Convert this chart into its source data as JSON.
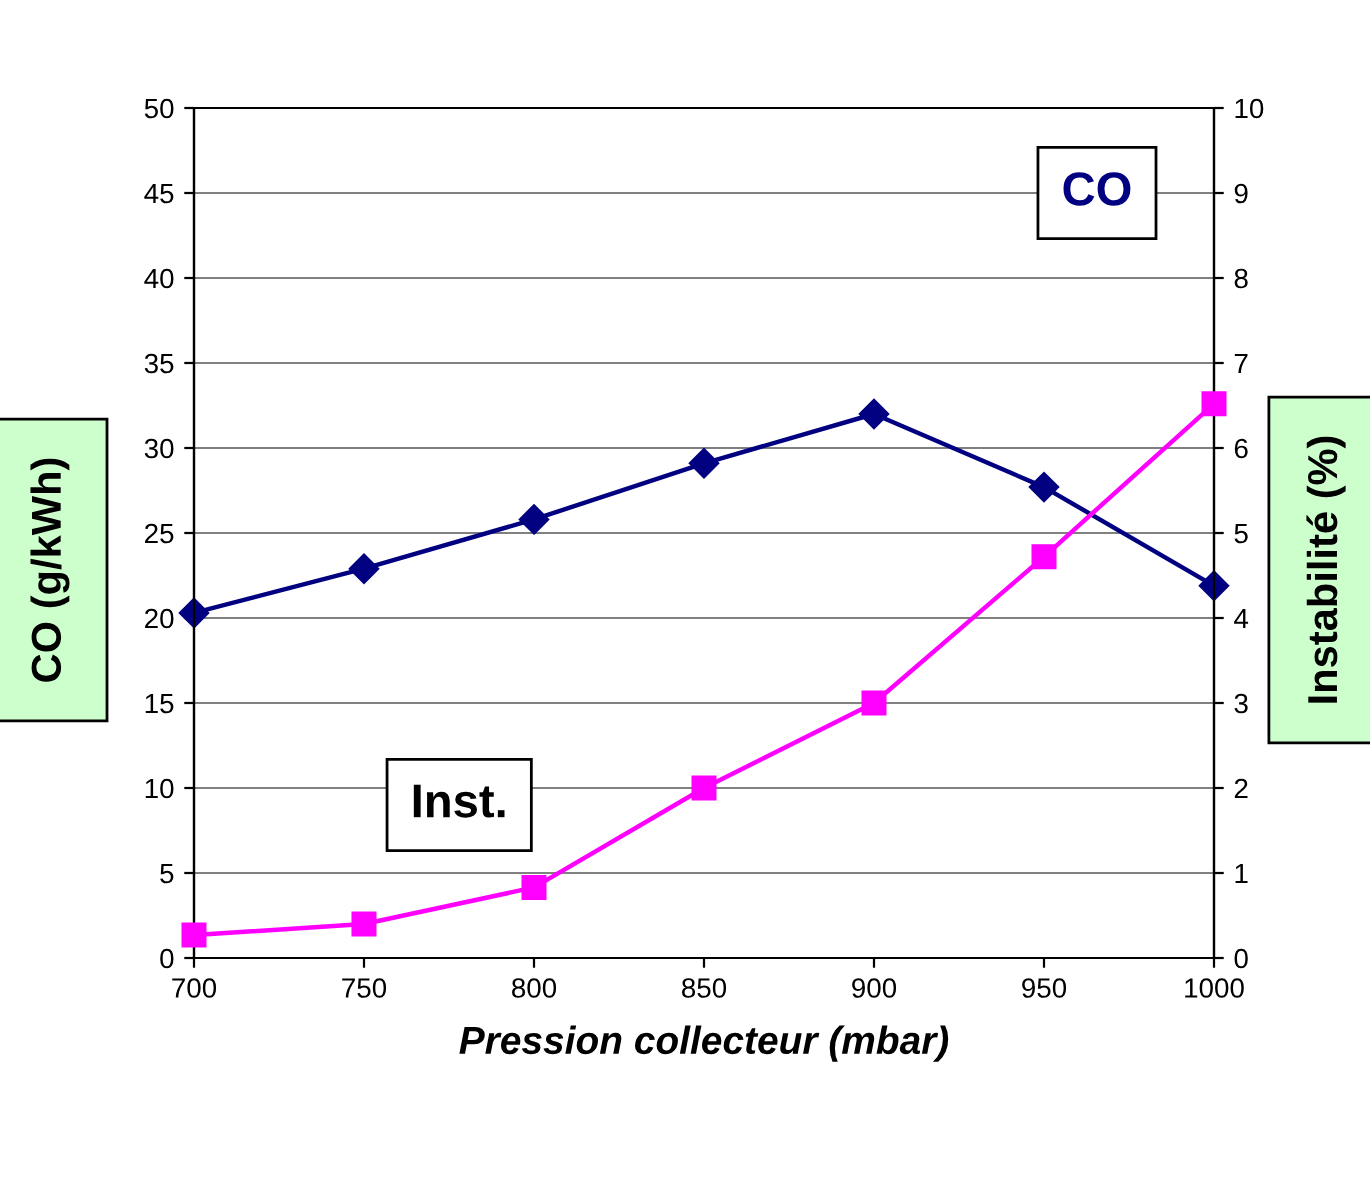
{
  "chart_data": {
    "type": "line",
    "xlabel": "Pression collecteur (mbar)",
    "ylabel": "CO (g/kWh)",
    "y2label": "Instabilité (%)",
    "x": [
      700,
      750,
      800,
      850,
      900,
      950,
      1000
    ],
    "series": [
      {
        "name": "CO",
        "color": "#000080",
        "marker": "diamond",
        "values": [
          20.3,
          22.9,
          25.8,
          29.1,
          32.0,
          27.7,
          21.9
        ]
      },
      {
        "name": "Inst.",
        "color": "#ff00ff",
        "marker": "square",
        "axis": "y2",
        "values": [
          0.27,
          0.4,
          0.83,
          2.0,
          3.0,
          4.72,
          6.52
        ]
      }
    ],
    "xlim": [
      700,
      1000
    ],
    "xticks": [
      700,
      750,
      800,
      850,
      900,
      950,
      1000
    ],
    "ylim": [
      0,
      50
    ],
    "yticks": [
      0,
      5,
      10,
      15,
      20,
      25,
      30,
      35,
      40,
      45,
      50
    ],
    "y2lim": [
      0,
      10
    ],
    "y2ticks": [
      0,
      1,
      2,
      3,
      4,
      5,
      6,
      7,
      8,
      9,
      10
    ],
    "grid": "y",
    "legend": false,
    "line_style": "solid"
  }
}
